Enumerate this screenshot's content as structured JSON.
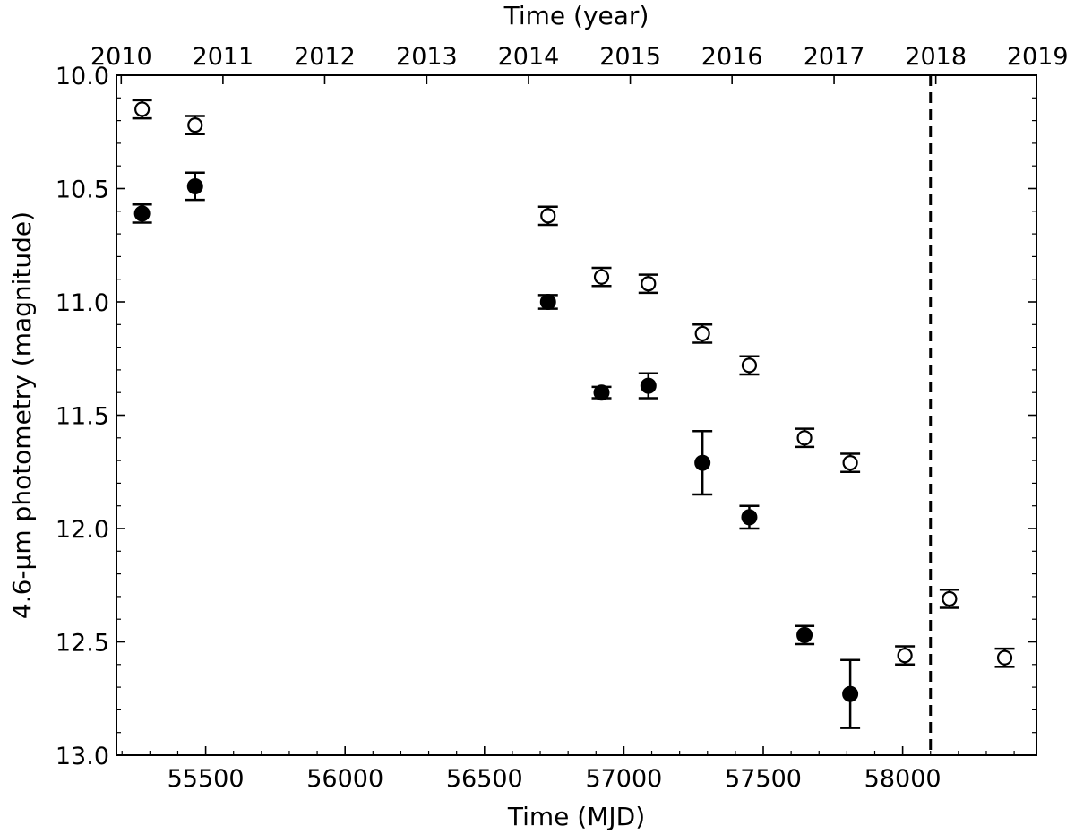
{
  "chart_data": {
    "type": "scatter",
    "xlabel": "Time (MJD)",
    "ylabel": "4.6-μm photometry (magnitude)",
    "top_xlabel": "Time (year)",
    "xlim": [
      55180,
      58480
    ],
    "ylim": [
      10.0,
      13.0
    ],
    "y_inverted": true,
    "x_ticks": [
      55500,
      56000,
      56500,
      57000,
      57500,
      58000
    ],
    "x_tick_labels": [
      "55500",
      "56000",
      "56500",
      "57000",
      "57500",
      "58000"
    ],
    "y_ticks": [
      10.0,
      10.5,
      11.0,
      11.5,
      12.0,
      12.5,
      13.0
    ],
    "y_tick_labels": [
      "10.0",
      "10.5",
      "11.0",
      "11.5",
      "12.0",
      "12.5",
      "13.0"
    ],
    "top_ticks": [
      {
        "label": "2010",
        "x": 55197
      },
      {
        "label": "2011",
        "x": 55562
      },
      {
        "label": "2012",
        "x": 55927
      },
      {
        "label": "2013",
        "x": 56293
      },
      {
        "label": "2014",
        "x": 56658
      },
      {
        "label": "2015",
        "x": 57023
      },
      {
        "label": "2016",
        "x": 57388
      },
      {
        "label": "2017",
        "x": 57754
      },
      {
        "label": "2018",
        "x": 58119
      },
      {
        "label": "2019",
        "x": 58484
      }
    ],
    "vline": {
      "x": 58100,
      "style": "dashed"
    },
    "grid": false,
    "series": [
      {
        "marker": "open-circle",
        "points": [
          {
            "x": 55272,
            "y": 10.15,
            "err": 0.04
          },
          {
            "x": 55462,
            "y": 10.22,
            "err": 0.04
          },
          {
            "x": 56728,
            "y": 10.62,
            "err": 0.04
          },
          {
            "x": 56920,
            "y": 10.89,
            "err": 0.04
          },
          {
            "x": 57088,
            "y": 10.92,
            "err": 0.04
          },
          {
            "x": 57282,
            "y": 11.14,
            "err": 0.04
          },
          {
            "x": 57450,
            "y": 11.28,
            "err": 0.04
          },
          {
            "x": 57648,
            "y": 11.6,
            "err": 0.04
          },
          {
            "x": 57812,
            "y": 11.71,
            "err": 0.04
          },
          {
            "x": 58008,
            "y": 12.56,
            "err": 0.04
          },
          {
            "x": 58168,
            "y": 12.31,
            "err": 0.04
          },
          {
            "x": 58366,
            "y": 12.57,
            "err": 0.04
          }
        ]
      },
      {
        "marker": "filled-circle",
        "points": [
          {
            "x": 55272,
            "y": 10.61,
            "err": 0.04
          },
          {
            "x": 55462,
            "y": 10.49,
            "err": 0.06
          },
          {
            "x": 56728,
            "y": 11.0,
            "err": 0.03
          },
          {
            "x": 56920,
            "y": 11.4,
            "err": 0.025
          },
          {
            "x": 57088,
            "y": 11.37,
            "err": 0.055
          },
          {
            "x": 57282,
            "y": 11.71,
            "err": 0.14
          },
          {
            "x": 57450,
            "y": 11.95,
            "err": 0.05
          },
          {
            "x": 57648,
            "y": 12.47,
            "err": 0.04
          },
          {
            "x": 57812,
            "y": 12.73,
            "err": 0.15
          }
        ]
      }
    ]
  }
}
